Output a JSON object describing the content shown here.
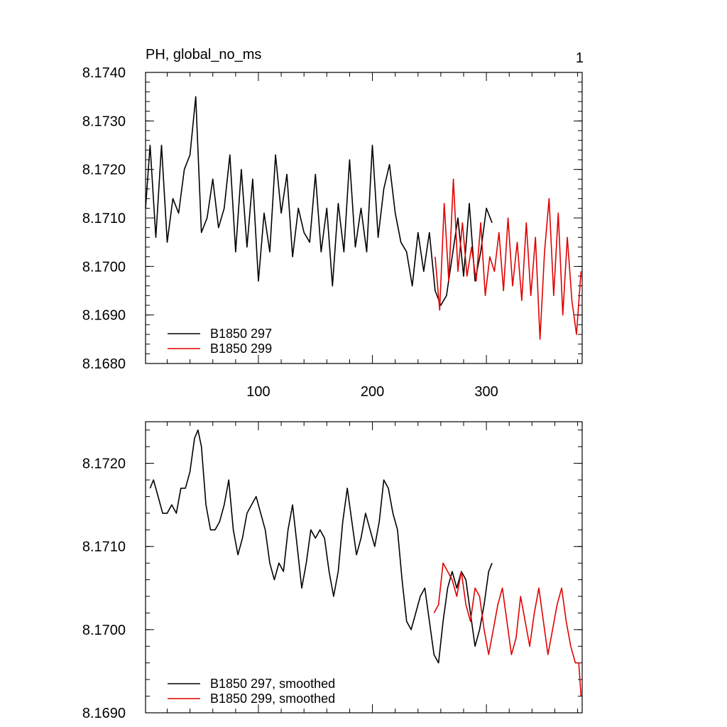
{
  "title_left": "PH, global_no_ms",
  "title_right": "1",
  "colors": {
    "series_297": "#000000",
    "series_299": "#e00000",
    "axis": "#000000",
    "background": "#ffffff"
  },
  "chart_data": [
    {
      "type": "line",
      "panel": "top",
      "title": "PH, global_no_ms",
      "xlim": [
        1,
        384
      ],
      "ylim": [
        8.168,
        8.174
      ],
      "x_ticks": [
        100,
        200,
        300
      ],
      "x_tick_labels": [
        "100",
        "200",
        "300"
      ],
      "x_tick_labels_position": "bottom",
      "y_ticks": [
        8.168,
        8.169,
        8.17,
        8.171,
        8.172,
        8.173,
        8.174
      ],
      "y_tick_labels": [
        "8.1680",
        "8.1690",
        "8.1700",
        "8.1710",
        "8.1720",
        "8.1730",
        "8.1740"
      ],
      "grid": false,
      "legend_position": "bottom-left",
      "series": [
        {
          "name": "B1850 297",
          "color": "#000000",
          "x": [
            1,
            5,
            10,
            15,
            20,
            25,
            30,
            35,
            40,
            45,
            50,
            55,
            60,
            65,
            70,
            75,
            80,
            85,
            90,
            95,
            100,
            105,
            110,
            115,
            120,
            125,
            130,
            135,
            140,
            145,
            150,
            155,
            160,
            165,
            170,
            175,
            180,
            185,
            190,
            195,
            200,
            205,
            210,
            215,
            220,
            225,
            230,
            235,
            240,
            245,
            250,
            255,
            260,
            265,
            270,
            275,
            280,
            285,
            290,
            295,
            300,
            305
          ],
          "values": [
            8.1712,
            8.1725,
            8.1706,
            8.1725,
            8.1705,
            8.1714,
            8.1711,
            8.172,
            8.1723,
            8.1735,
            8.1707,
            8.171,
            8.1718,
            8.1708,
            8.1712,
            8.1723,
            8.1703,
            8.172,
            8.1704,
            8.1718,
            8.1697,
            8.1711,
            8.1703,
            8.1723,
            8.1711,
            8.1719,
            8.1702,
            8.1712,
            8.1707,
            8.1705,
            8.1719,
            8.1703,
            8.1712,
            8.1696,
            8.1713,
            8.1703,
            8.1722,
            8.1704,
            8.1712,
            8.1703,
            8.1725,
            8.1706,
            8.1716,
            8.1721,
            8.1711,
            8.1705,
            8.1703,
            8.1696,
            8.1707,
            8.1699,
            8.1707,
            8.1695,
            8.1692,
            8.1694,
            8.1702,
            8.171,
            8.1698,
            8.1713,
            8.1697,
            8.1703,
            8.1712,
            8.1709
          ]
        },
        {
          "name": "B1850 299",
          "color": "#e00000",
          "x": [
            255,
            259,
            263,
            267,
            271,
            275,
            279,
            283,
            287,
            291,
            295,
            299,
            303,
            307,
            311,
            315,
            319,
            323,
            327,
            331,
            335,
            339,
            343,
            347,
            351,
            355,
            359,
            363,
            367,
            371,
            375,
            379,
            383
          ],
          "values": [
            8.1702,
            8.1691,
            8.1713,
            8.1697,
            8.1718,
            8.1699,
            8.1709,
            8.1698,
            8.1704,
            8.1697,
            8.1709,
            8.1694,
            8.1702,
            8.1699,
            8.1707,
            8.1695,
            8.171,
            8.1696,
            8.1705,
            8.1693,
            8.1709,
            8.1694,
            8.1706,
            8.1685,
            8.1703,
            8.1714,
            8.1694,
            8.1711,
            8.169,
            8.1706,
            8.1693,
            8.1686,
            8.1699
          ]
        }
      ]
    },
    {
      "type": "line",
      "panel": "bottom",
      "xlim": [
        1,
        384
      ],
      "ylim": [
        8.169,
        8.1725
      ],
      "x_ticks": [
        100,
        200,
        300
      ],
      "y_ticks": [
        8.169,
        8.17,
        8.171,
        8.172
      ],
      "y_tick_labels": [
        "8.1690",
        "8.1700",
        "8.1710",
        "8.1720"
      ],
      "grid": false,
      "legend_position": "bottom-left",
      "series": [
        {
          "name": "B1850 297, smoothed",
          "color": "#000000",
          "x": [
            5,
            8,
            12,
            16,
            20,
            24,
            28,
            32,
            36,
            40,
            44,
            47,
            50,
            54,
            58,
            62,
            66,
            70,
            74,
            78,
            82,
            86,
            90,
            94,
            98,
            102,
            106,
            110,
            114,
            118,
            122,
            126,
            130,
            134,
            138,
            142,
            146,
            150,
            154,
            158,
            162,
            166,
            170,
            174,
            178,
            182,
            186,
            190,
            194,
            198,
            202,
            206,
            210,
            214,
            218,
            222,
            226,
            230,
            234,
            238,
            242,
            246,
            250,
            254,
            258,
            262,
            266,
            270,
            274,
            278,
            282,
            286,
            290,
            294,
            298,
            302,
            305
          ],
          "values": [
            8.1717,
            8.1718,
            8.1716,
            8.1714,
            8.1714,
            8.1715,
            8.1714,
            8.1717,
            8.1717,
            8.1719,
            8.1723,
            8.1724,
            8.1722,
            8.1715,
            8.1712,
            8.1712,
            8.1713,
            8.1715,
            8.1718,
            8.1712,
            8.1709,
            8.1711,
            8.1714,
            8.1715,
            8.1716,
            8.1714,
            8.1712,
            8.1708,
            8.1706,
            8.1708,
            8.1707,
            8.1712,
            8.1715,
            8.171,
            8.1705,
            8.1708,
            8.1712,
            8.1711,
            8.1712,
            8.1711,
            8.1707,
            8.1704,
            8.1707,
            8.1713,
            8.1717,
            8.1713,
            8.1709,
            8.1711,
            8.1714,
            8.1712,
            8.171,
            8.1713,
            8.1718,
            8.1717,
            8.1714,
            8.1712,
            8.1706,
            8.1701,
            8.17,
            8.1702,
            8.1704,
            8.1705,
            8.1701,
            8.1697,
            8.1696,
            8.1701,
            8.1705,
            8.1707,
            8.1705,
            8.1707,
            8.1706,
            8.1702,
            8.1698,
            8.17,
            8.1703,
            8.1707,
            8.1708
          ]
        },
        {
          "name": "B1850 299, smoothed",
          "color": "#e00000",
          "x": [
            254,
            258,
            262,
            266,
            270,
            274,
            278,
            282,
            286,
            290,
            294,
            298,
            302,
            306,
            310,
            314,
            318,
            322,
            326,
            330,
            334,
            338,
            342,
            346,
            350,
            354,
            358,
            362,
            366,
            370,
            374,
            378,
            381,
            383
          ],
          "values": [
            8.1702,
            8.1703,
            8.1708,
            8.1707,
            8.1706,
            8.1704,
            8.1707,
            8.1703,
            8.1701,
            8.1705,
            8.1704,
            8.17,
            8.1697,
            8.17,
            8.1703,
            8.1705,
            8.1701,
            8.1697,
            8.1699,
            8.1704,
            8.1701,
            8.1698,
            8.1702,
            8.1705,
            8.1701,
            8.1697,
            8.17,
            8.1703,
            8.1705,
            8.1701,
            8.1698,
            8.1696,
            8.1696,
            8.1692
          ]
        }
      ]
    }
  ]
}
